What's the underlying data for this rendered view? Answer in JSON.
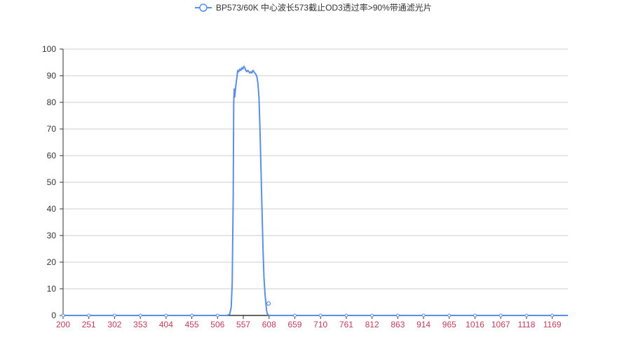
{
  "chart_data": {
    "type": "line",
    "title": "",
    "xlabel": "",
    "ylabel": "",
    "xlim": [
      200,
      1200
    ],
    "ylim": [
      0,
      100
    ],
    "x_ticks": [
      "200",
      "251",
      "302",
      "353",
      "404",
      "455",
      "506",
      "557",
      "608",
      "659",
      "710",
      "761",
      "812",
      "863",
      "914",
      "965",
      "1016",
      "1067",
      "1118",
      "1169"
    ],
    "y_ticks": [
      "0",
      "10",
      "20",
      "30",
      "40",
      "50",
      "60",
      "70",
      "80",
      "90",
      "100"
    ],
    "grid": "horizontal",
    "legend_position": "top-center",
    "series": [
      {
        "name": "BP573/60K 中心波长573截止OD3透过率>90%带通滤光片",
        "color": "#5b8ee6",
        "x": [
          200,
          300,
          400,
          500,
          525,
          530,
          533,
          535,
          537,
          538,
          539,
          540,
          542,
          544,
          546,
          548,
          550,
          552,
          554,
          556,
          558,
          560,
          562,
          564,
          566,
          568,
          570,
          572,
          574,
          576,
          578,
          580,
          582,
          584,
          586,
          588,
          590,
          592,
          594,
          596,
          598,
          600,
          601,
          602,
          603,
          604,
          605,
          606,
          607,
          608,
          610,
          620,
          650,
          700,
          760,
          800,
          860,
          880,
          900,
          960,
          1000,
          1100,
          1200
        ],
        "y": [
          0,
          0,
          0,
          0,
          0,
          0.5,
          3,
          12,
          45,
          80,
          85,
          82,
          86,
          89,
          92,
          91.5,
          92.5,
          92,
          93,
          92.5,
          93.5,
          93,
          92,
          91.5,
          92,
          91.5,
          91,
          91.5,
          91,
          92,
          91.5,
          91,
          90.5,
          89.5,
          87,
          82,
          70,
          55,
          40,
          25,
          14,
          8,
          6,
          4,
          2,
          1,
          0.5,
          0.3,
          0.1,
          0,
          0,
          0,
          0,
          0,
          0,
          0,
          0,
          0,
          0,
          0,
          0,
          0,
          0
        ],
        "markers": [
          {
            "x": 607,
            "y": 4.5
          }
        ]
      }
    ]
  }
}
